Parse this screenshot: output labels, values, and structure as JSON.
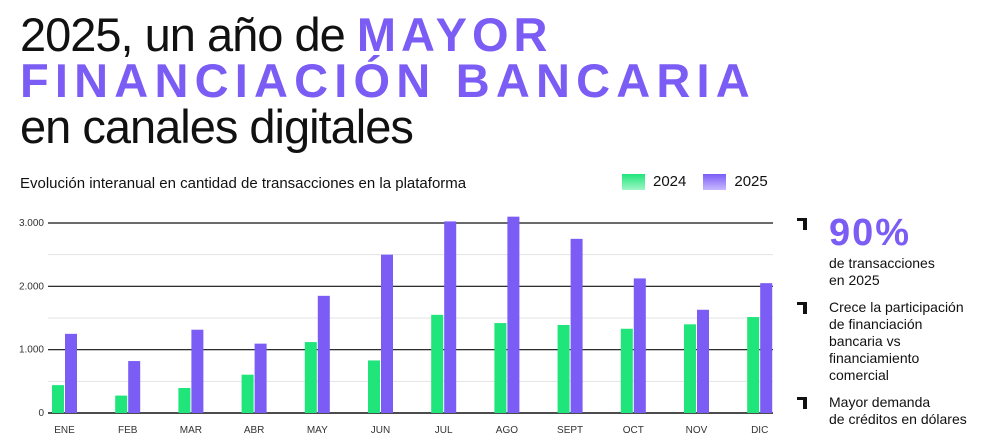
{
  "title": {
    "part1": "2025, un año de ",
    "highlight1": "MAYOR",
    "highlight2": "FINANCIACIÓN BANCARIA",
    "part3": "en canales digitales"
  },
  "subtitle": "Evolución interanual en cantidad de transacciones en la plataforma",
  "colors": {
    "s2024": "#1fe57a",
    "s2025": "#7b5cf5"
  },
  "chart_data": {
    "type": "bar",
    "title": "Evolución interanual en cantidad de transacciones en la plataforma",
    "categories": [
      "ENE",
      "FEB",
      "MAR",
      "ABR",
      "MAY",
      "JUN",
      "JUL",
      "AGO",
      "SEPT",
      "OCT",
      "NOV",
      "DIC"
    ],
    "series": [
      {
        "name": "2024",
        "values": [
          440,
          275,
          395,
          605,
          1120,
          830,
          1550,
          1420,
          1390,
          1330,
          1400,
          1515
        ]
      },
      {
        "name": "2025",
        "values": [
          1250,
          820,
          1315,
          1095,
          1850,
          2500,
          3025,
          3100,
          2750,
          2125,
          1630,
          2050
        ]
      }
    ],
    "yticks": [
      {
        "value": 0,
        "label": "0"
      },
      {
        "value": 1000,
        "label": "1.000"
      },
      {
        "value": 2000,
        "label": "2.000"
      },
      {
        "value": 3000,
        "label": "3.000"
      }
    ],
    "minor_gridlines": [
      500,
      1500,
      2500
    ],
    "ylim": [
      0,
      3000
    ],
    "xlabel": "",
    "ylabel": "",
    "legend": "top-right"
  },
  "side": {
    "stat": "90%",
    "stat_text": [
      "de transacciones",
      "en 2025"
    ],
    "point1": [
      "Crece la participación",
      "de financiación",
      "bancaria vs",
      "financiamiento",
      "comercial"
    ],
    "point2": [
      "Mayor demanda",
      "de créditos en dólares"
    ]
  }
}
